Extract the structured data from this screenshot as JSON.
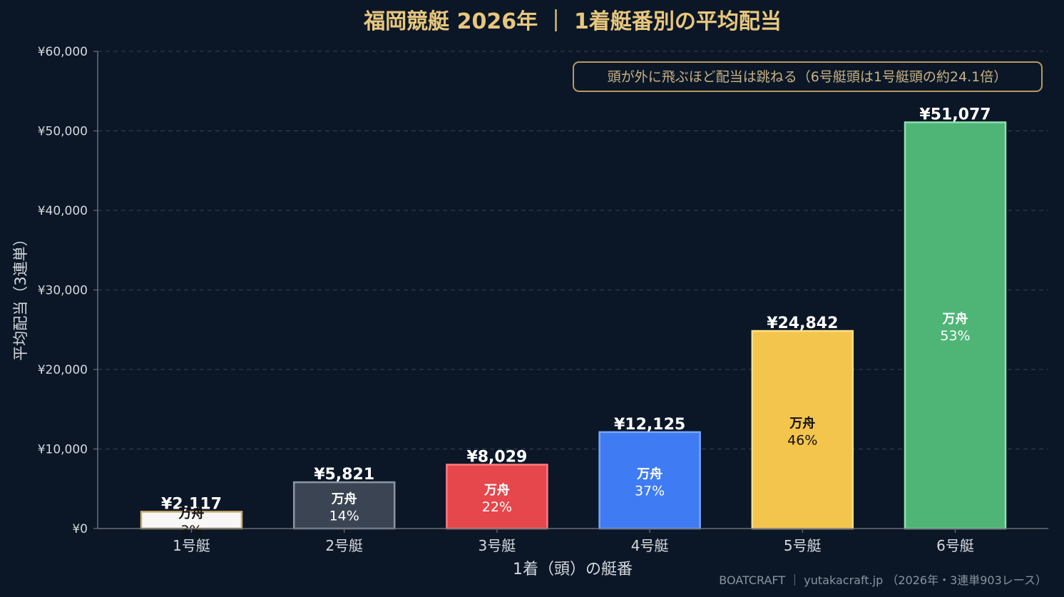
{
  "chart_data": {
    "type": "bar",
    "title": "福岡競艇 2026年 ｜ 1着艇番別の平均配当",
    "xlabel": "1着（頭）の艇番",
    "ylabel": "平均配当（3連単）",
    "ylim": [
      0,
      60000
    ],
    "yticks": [
      "¥0",
      "¥10,000",
      "¥20,000",
      "¥30,000",
      "¥40,000",
      "¥50,000",
      "¥60,000"
    ],
    "ytick_values": [
      0,
      10000,
      20000,
      30000,
      40000,
      50000,
      60000
    ],
    "grid": true,
    "categories": [
      "1号艇",
      "2号艇",
      "3号艇",
      "4号艇",
      "5号艇",
      "6号艇"
    ],
    "values": [
      2117,
      5821,
      8029,
      12125,
      24842,
      51077
    ],
    "value_labels": [
      "¥2,117",
      "¥5,821",
      "¥8,029",
      "¥12,125",
      "¥24,842",
      "¥51,077"
    ],
    "manshu_label": "万舟",
    "manshu_rates": [
      "3%",
      "14%",
      "22%",
      "37%",
      "46%",
      "53%"
    ],
    "bar_colors": [
      "#f7f7f7",
      "#3b4452",
      "#e5474c",
      "#3f7cf3",
      "#f4c54d",
      "#4fb576"
    ],
    "bar_edge_colors": [
      "#c9a96a",
      "#8b96a6",
      "#ff7a7e",
      "#7aa6ff",
      "#ffe08a",
      "#8fe0b0"
    ],
    "inner_text_colors": [
      "#111111",
      "#ffffff",
      "#ffffff",
      "#ffffff",
      "#111111",
      "#ffffff"
    ],
    "annotation": "頭が外に飛ぶほど配当は跳ねる（6号艇頭は1号艇頭の約24.1倍）"
  },
  "footer": "BOATCRAFT ｜ yutakacraft.jp （2026年・3連単903レース）",
  "colors": {
    "background": "#0b1727",
    "title": "#e8c77d",
    "axis_text": "#d6d9de",
    "grid": "#2e3b4a",
    "axis_line": "#6b6f75",
    "annotation_border": "#b89a5e",
    "annotation_text": "#c9b283",
    "footer": "#8a93a0",
    "value_label": "#ffffff"
  }
}
